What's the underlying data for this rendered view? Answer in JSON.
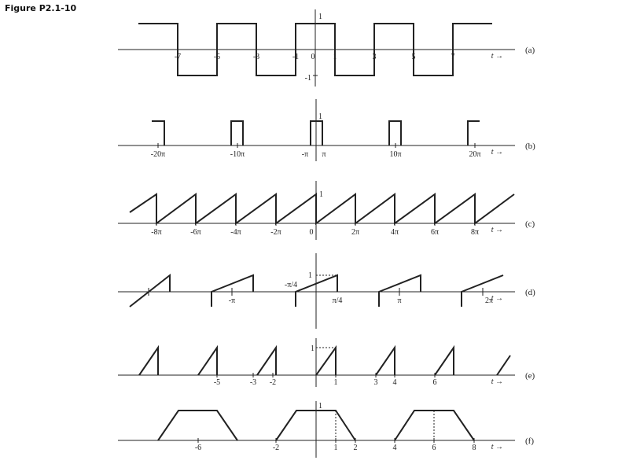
{
  "figure_title": "Figure P2.1-10",
  "axis_variable": "t",
  "panels": [
    {
      "id": "a",
      "label": "(a)",
      "waveform": "square",
      "x_ticks": [
        "-7",
        "-5",
        "-3",
        "-1",
        "0",
        "1",
        "3",
        "5",
        "7"
      ],
      "y_ticks": [
        "1",
        "-1"
      ]
    },
    {
      "id": "b",
      "label": "(b)",
      "waveform": "rectangular pulse train",
      "x_ticks": [
        "-20π",
        "-10π",
        "-π",
        "π",
        "10π",
        "20π"
      ],
      "y_ticks": [
        "1"
      ]
    },
    {
      "id": "c",
      "label": "(c)",
      "waveform": "sawtooth",
      "x_ticks": [
        "-8π",
        "-6π",
        "-4π",
        "-2π",
        "0",
        "2π",
        "4π",
        "6π",
        "8π"
      ],
      "y_ticks": [
        "1"
      ]
    },
    {
      "id": "d",
      "label": "(d)",
      "waveform": "sawtooth segments",
      "x_ticks": [
        "-π/4",
        "-π",
        "π/4",
        "π",
        "2π"
      ],
      "y_ticks": [
        "1"
      ]
    },
    {
      "id": "e",
      "label": "(e)",
      "waveform": "triangular pulses",
      "x_ticks": [
        "-5",
        "-3",
        "-2",
        "1",
        "3",
        "4",
        "6"
      ],
      "y_ticks": [
        "1"
      ]
    },
    {
      "id": "f",
      "label": "(f)",
      "waveform": "trapezoidal pulses",
      "x_ticks": [
        "-6",
        "-2",
        "1",
        "2",
        "4",
        "6",
        "8"
      ],
      "y_ticks": [
        "1"
      ]
    }
  ]
}
